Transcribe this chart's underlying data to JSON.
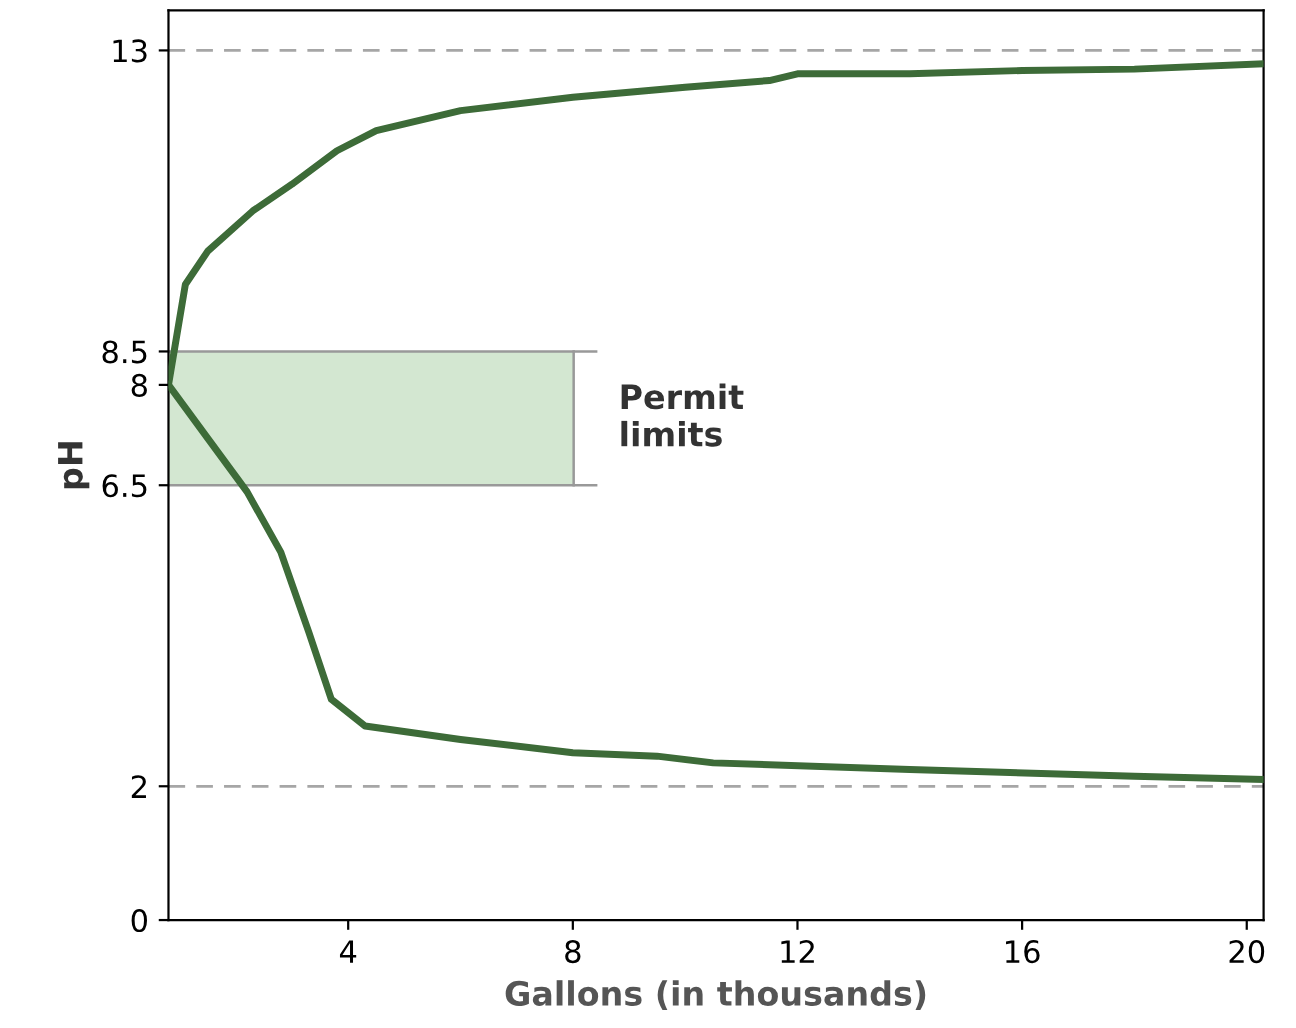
{
  "chart_data": {
    "type": "line",
    "xlabel": "Gallons (in thousands)",
    "ylabel": "pH",
    "xlim": [
      0.8,
      20.3
    ],
    "xticks": [
      4,
      8,
      12,
      16,
      20
    ],
    "ylim": [
      0,
      13.6
    ],
    "yticks": [
      0,
      2,
      6.5,
      8,
      8.5,
      13
    ],
    "series": [
      {
        "color": "#3d6b38",
        "x": [
          0.8,
          1.1,
          1.5,
          2.3,
          3,
          3.8,
          4.5,
          6,
          8,
          10,
          11.5,
          12,
          14,
          16,
          18,
          20.3
        ],
        "values": [
          8,
          9.5,
          10.0,
          10.6,
          11,
          11.5,
          11.8,
          12.1,
          12.3,
          12.45,
          12.55,
          12.65,
          12.65,
          12.7,
          12.72,
          12.8
        ]
      },
      {
        "color": "#3d6b38",
        "x": [
          0.8,
          1.5,
          2.2,
          2.8,
          3.3,
          3.7,
          4.3,
          6,
          8,
          9.5,
          10.5,
          14,
          18,
          20.3
        ],
        "values": [
          8,
          7.2,
          6.4,
          5.5,
          4.3,
          3.3,
          2.9,
          2.7,
          2.5,
          2.45,
          2.35,
          2.25,
          2.15,
          2.1
        ]
      }
    ],
    "ref_lines": [
      {
        "axis": "y",
        "value": 13,
        "color": "#a6a6a6",
        "line_style": "dashed"
      },
      {
        "axis": "y",
        "value": 2,
        "color": "#a6a6a6",
        "line_style": "dashed"
      }
    ],
    "bands": [
      {
        "axis": "y",
        "from": 6.5,
        "to": 8.5,
        "label": "Permit limits",
        "color": "#d3e7d1"
      }
    ],
    "grid": false,
    "legend": false
  }
}
